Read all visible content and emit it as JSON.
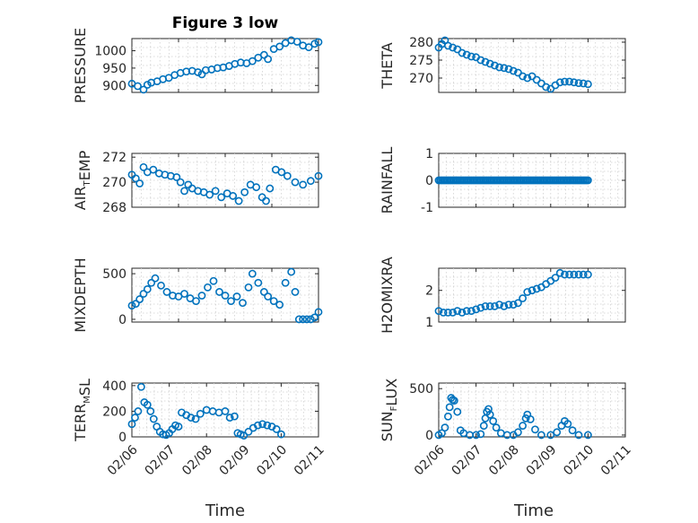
{
  "figure": {
    "title": "Figure 3 low",
    "xlabel": "Time",
    "marker_color": "#0072BD",
    "grid": "on"
  },
  "chart_data": [
    {
      "type": "scatter",
      "id": "pressure",
      "ylabel": "PRESSURE",
      "ylabel_parts": [
        {
          "t": "PRESSURE",
          "sub": false
        }
      ],
      "xlim": [
        "02/06",
        "02/10"
      ],
      "ylim": [
        880,
        1035
      ],
      "yticks": [
        900,
        950,
        1000
      ],
      "xticks": [],
      "points": [
        [
          "02/06 00:00",
          905
        ],
        [
          "02/06 03:00",
          898
        ],
        [
          "02/06 06:00",
          888
        ],
        [
          "02/06 08:00",
          902
        ],
        [
          "02/06 10:00",
          908
        ],
        [
          "02/06 13:00",
          912
        ],
        [
          "02/06 16:00",
          918
        ],
        [
          "02/06 19:00",
          922
        ],
        [
          "02/06 22:00",
          930
        ],
        [
          "02/07 01:00",
          936
        ],
        [
          "02/07 04:00",
          940
        ],
        [
          "02/07 07:00",
          942
        ],
        [
          "02/07 10:00",
          938
        ],
        [
          "02/07 12:00",
          932
        ],
        [
          "02/07 14:00",
          944
        ],
        [
          "02/07 17:00",
          946
        ],
        [
          "02/07 20:00",
          950
        ],
        [
          "02/07 23:00",
          952
        ],
        [
          "02/08 02:00",
          956
        ],
        [
          "02/08 05:00",
          962
        ],
        [
          "02/08 08:00",
          966
        ],
        [
          "02/08 11:00",
          964
        ],
        [
          "02/08 14:00",
          970
        ],
        [
          "02/08 17:00",
          980
        ],
        [
          "02/08 20:00",
          988
        ],
        [
          "02/08 22:00",
          976
        ],
        [
          "02/09 01:00",
          1005
        ],
        [
          "02/09 04:00",
          1012
        ],
        [
          "02/09 07:00",
          1022
        ],
        [
          "02/09 10:00",
          1030
        ],
        [
          "02/09 13:00",
          1026
        ],
        [
          "02/09 16:00",
          1015
        ],
        [
          "02/09 19:00",
          1010
        ],
        [
          "02/09 22:00",
          1020
        ],
        [
          "02/10 00:00",
          1025
        ]
      ]
    },
    {
      "type": "scatter",
      "id": "theta",
      "ylabel": "THETA",
      "ylabel_parts": [
        {
          "t": "THETA",
          "sub": false
        }
      ],
      "xlim": [
        "02/06",
        "02/11"
      ],
      "ylim": [
        266,
        281
      ],
      "yticks": [
        270,
        275,
        280
      ],
      "xticks": [],
      "points": [
        [
          "02/06 00:00",
          278.5
        ],
        [
          "02/06 02:00",
          279.5
        ],
        [
          "02/06 04:00",
          280.5
        ],
        [
          "02/06 06:00",
          279
        ],
        [
          "02/06 09:00",
          278.5
        ],
        [
          "02/06 12:00",
          278
        ],
        [
          "02/06 15:00",
          277
        ],
        [
          "02/06 18:00",
          276.5
        ],
        [
          "02/06 21:00",
          276
        ],
        [
          "02/07 00:00",
          275.8
        ],
        [
          "02/07 03:00",
          275
        ],
        [
          "02/07 06:00",
          274.5
        ],
        [
          "02/07 09:00",
          274
        ],
        [
          "02/07 12:00",
          273.5
        ],
        [
          "02/07 15:00",
          273
        ],
        [
          "02/07 18:00",
          272.8
        ],
        [
          "02/07 21:00",
          272.5
        ],
        [
          "02/08 00:00",
          272
        ],
        [
          "02/08 03:00",
          271.5
        ],
        [
          "02/08 06:00",
          270.5
        ],
        [
          "02/08 09:00",
          270
        ],
        [
          "02/08 12:00",
          270.5
        ],
        [
          "02/08 15:00",
          269.5
        ],
        [
          "02/08 18:00",
          268.5
        ],
        [
          "02/08 21:00",
          267.5
        ],
        [
          "02/09 00:00",
          267
        ],
        [
          "02/09 03:00",
          268
        ],
        [
          "02/09 06:00",
          268.8
        ],
        [
          "02/09 09:00",
          269
        ],
        [
          "02/09 12:00",
          269
        ],
        [
          "02/09 15:00",
          268.8
        ],
        [
          "02/09 18:00",
          268.6
        ],
        [
          "02/09 21:00",
          268.5
        ],
        [
          "02/10 00:00",
          268.3
        ]
      ]
    },
    {
      "type": "scatter",
      "id": "air_temp",
      "ylabel": "AIR_TEMP",
      "ylabel_parts": [
        {
          "t": "AIR",
          "sub": false
        },
        {
          "t": "T",
          "sub": true
        },
        {
          "t": "EMP",
          "sub": false
        }
      ],
      "xlim": [
        "02/06",
        "02/10"
      ],
      "ylim": [
        268,
        272.3
      ],
      "yticks": [
        268,
        270,
        272
      ],
      "xticks": [],
      "points": [
        [
          "02/06 00:00",
          270.6
        ],
        [
          "02/06 02:00",
          270.3
        ],
        [
          "02/06 04:00",
          269.9
        ],
        [
          "02/06 06:00",
          271.2
        ],
        [
          "02/06 08:00",
          270.8
        ],
        [
          "02/06 11:00",
          271
        ],
        [
          "02/06 14:00",
          270.7
        ],
        [
          "02/06 17:00",
          270.6
        ],
        [
          "02/06 20:00",
          270.5
        ],
        [
          "02/06 23:00",
          270.4
        ],
        [
          "02/07 01:00",
          270
        ],
        [
          "02/07 03:00",
          269.3
        ],
        [
          "02/07 05:00",
          269.8
        ],
        [
          "02/07 07:00",
          269.5
        ],
        [
          "02/07 10:00",
          269.3
        ],
        [
          "02/07 13:00",
          269.2
        ],
        [
          "02/07 16:00",
          269
        ],
        [
          "02/07 19:00",
          269.3
        ],
        [
          "02/07 22:00",
          268.8
        ],
        [
          "02/08 01:00",
          269.1
        ],
        [
          "02/08 04:00",
          268.9
        ],
        [
          "02/08 07:00",
          268.5
        ],
        [
          "02/08 10:00",
          269.2
        ],
        [
          "02/08 13:00",
          269.8
        ],
        [
          "02/08 16:00",
          269.6
        ],
        [
          "02/08 19:00",
          268.8
        ],
        [
          "02/08 21:00",
          268.5
        ],
        [
          "02/08 23:00",
          269.5
        ],
        [
          "02/09 02:00",
          271
        ],
        [
          "02/09 05:00",
          270.8
        ],
        [
          "02/09 08:00",
          270.5
        ],
        [
          "02/09 12:00",
          270
        ],
        [
          "02/09 16:00",
          269.8
        ],
        [
          "02/09 20:00",
          270.1
        ],
        [
          "02/10 00:00",
          270.5
        ]
      ]
    },
    {
      "type": "scatter",
      "id": "rainfall",
      "ylabel": "RAINFALL",
      "ylabel_parts": [
        {
          "t": "RAINFALL",
          "sub": false
        }
      ],
      "xlim": [
        "02/06",
        "02/11"
      ],
      "ylim": [
        -1,
        1
      ],
      "yticks": [
        -1,
        0,
        1
      ],
      "xticks": [],
      "points_constant": {
        "start": "02/06 00:00",
        "end": "02/10 00:00",
        "step_hours": 1,
        "y": 0
      }
    },
    {
      "type": "scatter",
      "id": "mixdepth",
      "ylabel": "MIXDEPTH",
      "ylabel_parts": [
        {
          "t": "MIXDEPTH",
          "sub": false
        }
      ],
      "xlim": [
        "02/06",
        "02/10"
      ],
      "ylim": [
        -30,
        560
      ],
      "yticks": [
        0,
        500
      ],
      "xticks": [],
      "points": [
        [
          "02/06 00:00",
          150
        ],
        [
          "02/06 02:00",
          170
        ],
        [
          "02/06 04:00",
          220
        ],
        [
          "02/06 06:00",
          280
        ],
        [
          "02/06 08:00",
          330
        ],
        [
          "02/06 10:00",
          400
        ],
        [
          "02/06 12:00",
          450
        ],
        [
          "02/06 15:00",
          370
        ],
        [
          "02/06 18:00",
          300
        ],
        [
          "02/06 21:00",
          260
        ],
        [
          "02/07 00:00",
          250
        ],
        [
          "02/07 03:00",
          280
        ],
        [
          "02/07 06:00",
          230
        ],
        [
          "02/07 09:00",
          200
        ],
        [
          "02/07 12:00",
          260
        ],
        [
          "02/07 15:00",
          350
        ],
        [
          "02/07 18:00",
          420
        ],
        [
          "02/07 21:00",
          300
        ],
        [
          "02/08 00:00",
          260
        ],
        [
          "02/08 03:00",
          200
        ],
        [
          "02/08 06:00",
          250
        ],
        [
          "02/08 09:00",
          180
        ],
        [
          "02/08 12:00",
          350
        ],
        [
          "02/08 14:00",
          500
        ],
        [
          "02/08 17:00",
          400
        ],
        [
          "02/08 20:00",
          300
        ],
        [
          "02/08 22:00",
          250
        ],
        [
          "02/09 01:00",
          200
        ],
        [
          "02/09 04:00",
          160
        ],
        [
          "02/09 07:00",
          400
        ],
        [
          "02/09 10:00",
          520
        ],
        [
          "02/09 12:00",
          300
        ],
        [
          "02/09 14:00",
          0
        ],
        [
          "02/09 16:00",
          0
        ],
        [
          "02/09 18:00",
          0
        ],
        [
          "02/09 20:00",
          0
        ],
        [
          "02/09 22:00",
          20
        ],
        [
          "02/10 00:00",
          80
        ]
      ]
    },
    {
      "type": "scatter",
      "id": "h2omixra",
      "ylabel": "H2OMIXRA",
      "ylabel_parts": [
        {
          "t": "H2OMIXRA",
          "sub": false
        }
      ],
      "xlim": [
        "02/06",
        "02/11"
      ],
      "ylim": [
        1,
        2.7
      ],
      "yticks": [
        1,
        2
      ],
      "xticks": [],
      "points": [
        [
          "02/06 00:00",
          1.35
        ],
        [
          "02/06 03:00",
          1.3
        ],
        [
          "02/06 06:00",
          1.3
        ],
        [
          "02/06 09:00",
          1.3
        ],
        [
          "02/06 12:00",
          1.35
        ],
        [
          "02/06 15:00",
          1.3
        ],
        [
          "02/06 18:00",
          1.35
        ],
        [
          "02/06 21:00",
          1.35
        ],
        [
          "02/07 00:00",
          1.4
        ],
        [
          "02/07 03:00",
          1.45
        ],
        [
          "02/07 06:00",
          1.5
        ],
        [
          "02/07 09:00",
          1.5
        ],
        [
          "02/07 12:00",
          1.5
        ],
        [
          "02/07 15:00",
          1.55
        ],
        [
          "02/07 18:00",
          1.5
        ],
        [
          "02/07 21:00",
          1.55
        ],
        [
          "02/08 00:00",
          1.55
        ],
        [
          "02/08 03:00",
          1.6
        ],
        [
          "02/08 06:00",
          1.75
        ],
        [
          "02/08 09:00",
          1.95
        ],
        [
          "02/08 12:00",
          2
        ],
        [
          "02/08 15:00",
          2.05
        ],
        [
          "02/08 18:00",
          2.1
        ],
        [
          "02/08 21:00",
          2.2
        ],
        [
          "02/09 00:00",
          2.3
        ],
        [
          "02/09 03:00",
          2.4
        ],
        [
          "02/09 06:00",
          2.55
        ],
        [
          "02/09 09:00",
          2.5
        ],
        [
          "02/09 12:00",
          2.5
        ],
        [
          "02/09 15:00",
          2.5
        ],
        [
          "02/09 18:00",
          2.5
        ],
        [
          "02/09 21:00",
          2.5
        ],
        [
          "02/10 00:00",
          2.5
        ]
      ]
    },
    {
      "type": "scatter",
      "id": "terr_msl",
      "ylabel": "TERR_MSL",
      "ylabel_parts": [
        {
          "t": "TERR",
          "sub": false
        },
        {
          "t": "M",
          "sub": true
        },
        {
          "t": "SL",
          "sub": false
        }
      ],
      "xlim": [
        "02/06",
        "02/11"
      ],
      "ylim": [
        0,
        420
      ],
      "yticks": [
        0,
        200,
        400
      ],
      "xticks": [
        "02/06",
        "02/07",
        "02/08",
        "02/09",
        "02/10",
        "02/11"
      ],
      "points": [
        [
          "02/06 00:00",
          100
        ],
        [
          "02/06 02:00",
          150
        ],
        [
          "02/06 04:00",
          200
        ],
        [
          "02/06 06:00",
          390
        ],
        [
          "02/06 08:00",
          270
        ],
        [
          "02/06 10:00",
          250
        ],
        [
          "02/06 12:00",
          200
        ],
        [
          "02/06 14:00",
          140
        ],
        [
          "02/06 16:00",
          80
        ],
        [
          "02/06 18:00",
          40
        ],
        [
          "02/06 20:00",
          20
        ],
        [
          "02/06 22:00",
          15
        ],
        [
          "02/07 00:00",
          30
        ],
        [
          "02/07 02:00",
          60
        ],
        [
          "02/07 04:00",
          90
        ],
        [
          "02/07 06:00",
          80
        ],
        [
          "02/07 08:00",
          190
        ],
        [
          "02/07 11:00",
          170
        ],
        [
          "02/07 14:00",
          150
        ],
        [
          "02/07 17:00",
          140
        ],
        [
          "02/07 20:00",
          180
        ],
        [
          "02/08 00:00",
          210
        ],
        [
          "02/08 04:00",
          200
        ],
        [
          "02/08 08:00",
          190
        ],
        [
          "02/08 12:00",
          200
        ],
        [
          "02/08 15:00",
          150
        ],
        [
          "02/08 18:00",
          160
        ],
        [
          "02/08 20:00",
          30
        ],
        [
          "02/08 22:00",
          20
        ],
        [
          "02/09 00:00",
          10
        ],
        [
          "02/09 03:00",
          40
        ],
        [
          "02/09 06:00",
          70
        ],
        [
          "02/09 09:00",
          90
        ],
        [
          "02/09 12:00",
          100
        ],
        [
          "02/09 15:00",
          90
        ],
        [
          "02/09 18:00",
          80
        ],
        [
          "02/09 21:00",
          60
        ],
        [
          "02/10 00:00",
          20
        ]
      ]
    },
    {
      "type": "scatter",
      "id": "sun_flux",
      "ylabel": "SUN_FLUX",
      "ylabel_parts": [
        {
          "t": "SUN",
          "sub": false
        },
        {
          "t": "F",
          "sub": true
        },
        {
          "t": "LUX",
          "sub": false
        }
      ],
      "xlim": [
        "02/06",
        "02/11"
      ],
      "ylim": [
        -20,
        560
      ],
      "yticks": [
        0,
        500
      ],
      "xticks": [
        "02/06",
        "02/07",
        "02/08",
        "02/09",
        "02/10",
        "02/11"
      ],
      "points": [
        [
          "02/06 00:00",
          0
        ],
        [
          "02/06 02:00",
          20
        ],
        [
          "02/06 04:00",
          80
        ],
        [
          "02/06 06:00",
          200
        ],
        [
          "02/06 07:00",
          300
        ],
        [
          "02/06 08:00",
          400
        ],
        [
          "02/06 09:00",
          380
        ],
        [
          "02/06 10:00",
          370
        ],
        [
          "02/06 12:00",
          250
        ],
        [
          "02/06 14:00",
          50
        ],
        [
          "02/06 16:00",
          20
        ],
        [
          "02/06 20:00",
          0
        ],
        [
          "02/07 00:00",
          0
        ],
        [
          "02/07 03:00",
          10
        ],
        [
          "02/07 05:00",
          100
        ],
        [
          "02/07 06:00",
          180
        ],
        [
          "02/07 07:00",
          250
        ],
        [
          "02/07 08:00",
          280
        ],
        [
          "02/07 09:00",
          220
        ],
        [
          "02/07 11:00",
          150
        ],
        [
          "02/07 13:00",
          80
        ],
        [
          "02/07 16:00",
          20
        ],
        [
          "02/07 20:00",
          0
        ],
        [
          "02/08 00:00",
          0
        ],
        [
          "02/08 03:00",
          30
        ],
        [
          "02/08 06:00",
          100
        ],
        [
          "02/08 08:00",
          180
        ],
        [
          "02/08 09:00",
          220
        ],
        [
          "02/08 11:00",
          170
        ],
        [
          "02/08 14:00",
          60
        ],
        [
          "02/08 18:00",
          0
        ],
        [
          "02/09 00:00",
          0
        ],
        [
          "02/09 04:00",
          30
        ],
        [
          "02/09 07:00",
          100
        ],
        [
          "02/09 09:00",
          150
        ],
        [
          "02/09 11:00",
          120
        ],
        [
          "02/09 14:00",
          50
        ],
        [
          "02/09 18:00",
          0
        ],
        [
          "02/10 00:00",
          0
        ]
      ]
    }
  ]
}
